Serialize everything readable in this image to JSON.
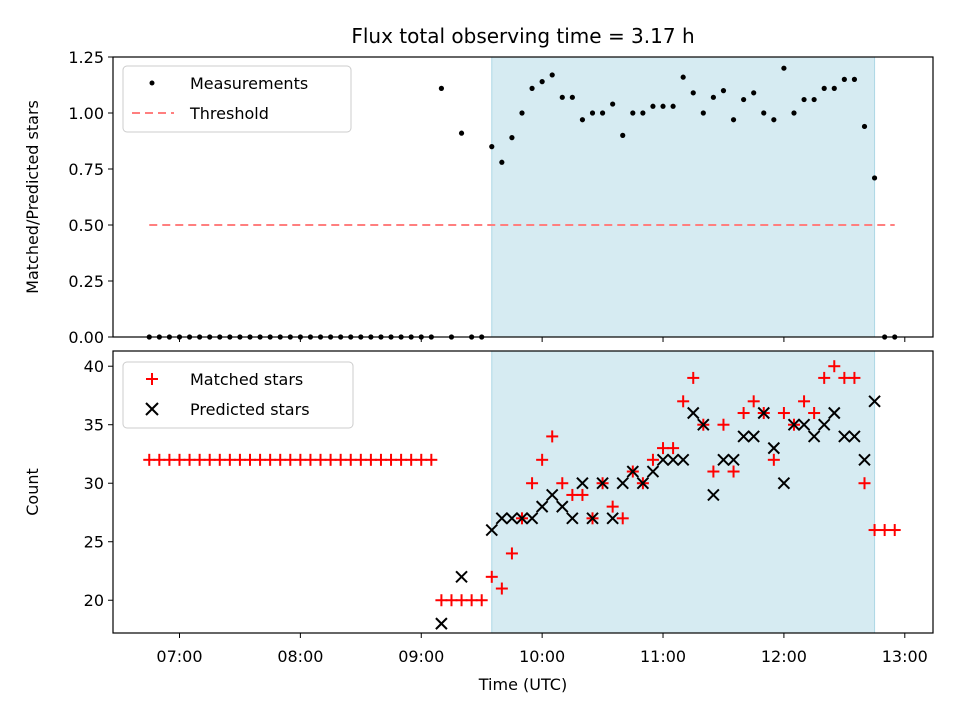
{
  "chart_data": [
    {
      "type": "scatter",
      "title": "Flux total observing time = 3.17 h",
      "xlabel": "",
      "ylabel": "Matched/Predicted stars",
      "xlim": [
        "06:27",
        "13:14"
      ],
      "ylim": [
        0,
        1.25
      ],
      "yticks": [
        "0.00",
        "0.25",
        "0.50",
        "0.75",
        "1.00",
        "1.25"
      ],
      "shaded_region": [
        "09:35",
        "12:45"
      ],
      "series": [
        {
          "name": "Measurements",
          "marker": "dot",
          "color": "#000000",
          "points": [
            [
              "06:45",
              0
            ],
            [
              "06:50",
              0
            ],
            [
              "06:55",
              0
            ],
            [
              "07:00",
              0
            ],
            [
              "07:05",
              0
            ],
            [
              "07:10",
              0
            ],
            [
              "07:15",
              0
            ],
            [
              "07:20",
              0
            ],
            [
              "07:25",
              0
            ],
            [
              "07:30",
              0
            ],
            [
              "07:35",
              0
            ],
            [
              "07:40",
              0
            ],
            [
              "07:45",
              0
            ],
            [
              "07:50",
              0
            ],
            [
              "07:55",
              0
            ],
            [
              "08:00",
              0
            ],
            [
              "08:05",
              0
            ],
            [
              "08:10",
              0
            ],
            [
              "08:15",
              0
            ],
            [
              "08:20",
              0
            ],
            [
              "08:25",
              0
            ],
            [
              "08:30",
              0
            ],
            [
              "08:35",
              0
            ],
            [
              "08:40",
              0
            ],
            [
              "08:45",
              0
            ],
            [
              "08:50",
              0
            ],
            [
              "08:55",
              0
            ],
            [
              "09:00",
              0
            ],
            [
              "09:05",
              0
            ],
            [
              "09:10",
              1.11
            ],
            [
              "09:15",
              0
            ],
            [
              "09:20",
              0.91
            ],
            [
              "09:25",
              0
            ],
            [
              "09:30",
              0
            ],
            [
              "09:35",
              0.85
            ],
            [
              "09:40",
              0.78
            ],
            [
              "09:45",
              0.89
            ],
            [
              "09:50",
              1.0
            ],
            [
              "09:55",
              1.11
            ],
            [
              "10:00",
              1.14
            ],
            [
              "10:05",
              1.17
            ],
            [
              "10:10",
              1.07
            ],
            [
              "10:15",
              1.07
            ],
            [
              "10:20",
              0.97
            ],
            [
              "10:25",
              1.0
            ],
            [
              "10:30",
              1.0
            ],
            [
              "10:35",
              1.04
            ],
            [
              "10:40",
              0.9
            ],
            [
              "10:45",
              1.0
            ],
            [
              "10:50",
              1.0
            ],
            [
              "10:55",
              1.03
            ],
            [
              "11:00",
              1.03
            ],
            [
              "11:05",
              1.03
            ],
            [
              "11:10",
              1.16
            ],
            [
              "11:15",
              1.09
            ],
            [
              "11:20",
              1.0
            ],
            [
              "11:25",
              1.07
            ],
            [
              "11:30",
              1.1
            ],
            [
              "11:35",
              0.97
            ],
            [
              "11:40",
              1.06
            ],
            [
              "11:45",
              1.09
            ],
            [
              "11:50",
              1.0
            ],
            [
              "11:55",
              0.97
            ],
            [
              "12:00",
              1.2
            ],
            [
              "12:05",
              1.0
            ],
            [
              "12:10",
              1.06
            ],
            [
              "12:15",
              1.06
            ],
            [
              "12:20",
              1.11
            ],
            [
              "12:25",
              1.11
            ],
            [
              "12:30",
              1.15
            ],
            [
              "12:35",
              1.15
            ],
            [
              "12:40",
              0.94
            ],
            [
              "12:45",
              0.71
            ],
            [
              "12:50",
              0
            ],
            [
              "12:55",
              0
            ]
          ]
        },
        {
          "name": "Threshold",
          "marker": "dashed-line",
          "color": "#ff7f7f",
          "points": [
            [
              "06:45",
              0.5
            ],
            [
              "12:55",
              0.5
            ]
          ]
        }
      ]
    },
    {
      "type": "scatter",
      "title": "",
      "xlabel": "Time (UTC)",
      "ylabel": "Count",
      "xlim": [
        "06:27",
        "13:14"
      ],
      "ylim": [
        17.2,
        41.3
      ],
      "yticks": [
        "20",
        "25",
        "30",
        "35",
        "40"
      ],
      "xticks": [
        "07:00",
        "08:00",
        "09:00",
        "10:00",
        "11:00",
        "12:00",
        "13:00"
      ],
      "shaded_region": [
        "09:35",
        "12:45"
      ],
      "series": [
        {
          "name": "Matched stars",
          "marker": "plus",
          "color": "#ff0000",
          "points": [
            [
              "06:45",
              32
            ],
            [
              "06:50",
              32
            ],
            [
              "06:55",
              32
            ],
            [
              "07:00",
              32
            ],
            [
              "07:05",
              32
            ],
            [
              "07:10",
              32
            ],
            [
              "07:15",
              32
            ],
            [
              "07:20",
              32
            ],
            [
              "07:25",
              32
            ],
            [
              "07:30",
              32
            ],
            [
              "07:35",
              32
            ],
            [
              "07:40",
              32
            ],
            [
              "07:45",
              32
            ],
            [
              "07:50",
              32
            ],
            [
              "07:55",
              32
            ],
            [
              "08:00",
              32
            ],
            [
              "08:05",
              32
            ],
            [
              "08:10",
              32
            ],
            [
              "08:15",
              32
            ],
            [
              "08:20",
              32
            ],
            [
              "08:25",
              32
            ],
            [
              "08:30",
              32
            ],
            [
              "08:35",
              32
            ],
            [
              "08:40",
              32
            ],
            [
              "08:45",
              32
            ],
            [
              "08:50",
              32
            ],
            [
              "08:55",
              32
            ],
            [
              "09:00",
              32
            ],
            [
              "09:05",
              32
            ],
            [
              "09:10",
              20
            ],
            [
              "09:15",
              20
            ],
            [
              "09:20",
              20
            ],
            [
              "09:25",
              20
            ],
            [
              "09:30",
              20
            ],
            [
              "09:35",
              22
            ],
            [
              "09:40",
              21
            ],
            [
              "09:45",
              24
            ],
            [
              "09:50",
              27
            ],
            [
              "09:55",
              30
            ],
            [
              "10:00",
              32
            ],
            [
              "10:05",
              34
            ],
            [
              "10:10",
              30
            ],
            [
              "10:15",
              29
            ],
            [
              "10:20",
              29
            ],
            [
              "10:25",
              27
            ],
            [
              "10:30",
              30
            ],
            [
              "10:35",
              28
            ],
            [
              "10:40",
              27
            ],
            [
              "10:45",
              31
            ],
            [
              "10:50",
              30
            ],
            [
              "10:55",
              32
            ],
            [
              "11:00",
              33
            ],
            [
              "11:05",
              33
            ],
            [
              "11:10",
              37
            ],
            [
              "11:15",
              39
            ],
            [
              "11:20",
              35
            ],
            [
              "11:25",
              31
            ],
            [
              "11:30",
              35
            ],
            [
              "11:35",
              31
            ],
            [
              "11:40",
              36
            ],
            [
              "11:45",
              37
            ],
            [
              "11:50",
              36
            ],
            [
              "11:55",
              32
            ],
            [
              "12:00",
              36
            ],
            [
              "12:05",
              35
            ],
            [
              "12:10",
              37
            ],
            [
              "12:15",
              36
            ],
            [
              "12:20",
              39
            ],
            [
              "12:25",
              40
            ],
            [
              "12:30",
              39
            ],
            [
              "12:35",
              39
            ],
            [
              "12:40",
              30
            ],
            [
              "12:45",
              26
            ],
            [
              "12:50",
              26
            ],
            [
              "12:55",
              26
            ]
          ]
        },
        {
          "name": "Predicted stars",
          "marker": "x",
          "color": "#000000",
          "points": [
            [
              "09:10",
              18
            ],
            [
              "09:20",
              22
            ],
            [
              "09:35",
              26
            ],
            [
              "09:40",
              27
            ],
            [
              "09:45",
              27
            ],
            [
              "09:50",
              27
            ],
            [
              "09:55",
              27
            ],
            [
              "10:00",
              28
            ],
            [
              "10:05",
              29
            ],
            [
              "10:10",
              28
            ],
            [
              "10:15",
              27
            ],
            [
              "10:20",
              30
            ],
            [
              "10:25",
              27
            ],
            [
              "10:30",
              30
            ],
            [
              "10:35",
              27
            ],
            [
              "10:40",
              30
            ],
            [
              "10:45",
              31
            ],
            [
              "10:50",
              30
            ],
            [
              "10:55",
              31
            ],
            [
              "11:00",
              32
            ],
            [
              "11:05",
              32
            ],
            [
              "11:10",
              32
            ],
            [
              "11:15",
              36
            ],
            [
              "11:20",
              35
            ],
            [
              "11:25",
              29
            ],
            [
              "11:30",
              32
            ],
            [
              "11:35",
              32
            ],
            [
              "11:40",
              34
            ],
            [
              "11:45",
              34
            ],
            [
              "11:50",
              36
            ],
            [
              "11:55",
              33
            ],
            [
              "12:00",
              30
            ],
            [
              "12:05",
              35
            ],
            [
              "12:10",
              35
            ],
            [
              "12:15",
              34
            ],
            [
              "12:20",
              35
            ],
            [
              "12:25",
              36
            ],
            [
              "12:30",
              34
            ],
            [
              "12:35",
              34
            ],
            [
              "12:40",
              32
            ],
            [
              "12:45",
              37
            ]
          ]
        }
      ]
    }
  ]
}
